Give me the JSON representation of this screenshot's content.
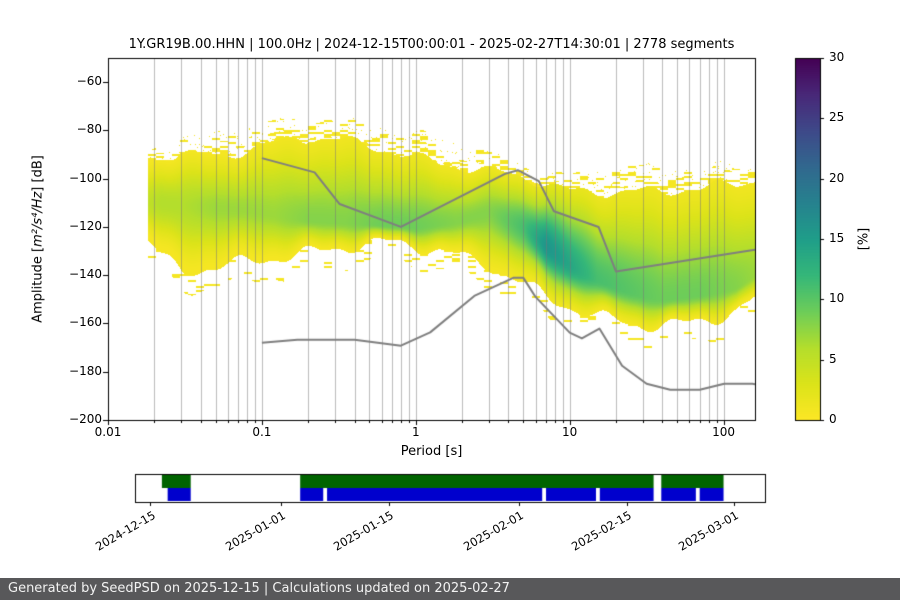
{
  "chart_data": {
    "type": "heatmap",
    "title": "1Y.GR19B.00.HHN | 100.0Hz | 2024-12-15T00:00:01 - 2025-02-27T14:30:01 | 2778 segments",
    "xlabel": "Period [s]",
    "ylabel": "Amplitude [m²/s⁴/Hz] [dB]",
    "ylabel_parts": {
      "prefix": "Amplitude [",
      "math": "m²/s⁴/Hz",
      "suffix": "] [dB]"
    },
    "xscale": "log",
    "xlim": [
      0.01,
      160
    ],
    "ylim": [
      -200,
      -50
    ],
    "grid": {
      "vertical_minor_log": true,
      "color": "rgba(120,120,120,0.5)"
    },
    "xticks": {
      "values": [
        0.01,
        0.1,
        1,
        10,
        100
      ],
      "labels": [
        "0.01",
        "0.1",
        "1",
        "10",
        "100"
      ]
    },
    "yticks": {
      "values": [
        -200,
        -180,
        -160,
        -140,
        -120,
        -100,
        -80,
        -60
      ],
      "labels": [
        "−200",
        "−180",
        "−160",
        "−140",
        "−120",
        "−100",
        "−80",
        "−60"
      ]
    },
    "colorbar": {
      "label": "[%]",
      "min": 0,
      "max": 30,
      "ticks": [
        0,
        5,
        10,
        15,
        20,
        25,
        30
      ],
      "colormap": "viridis_r",
      "stops": [
        [
          0.0,
          "#440154"
        ],
        [
          0.1,
          "#482878"
        ],
        [
          0.2,
          "#3e4989"
        ],
        [
          0.3,
          "#31688e"
        ],
        [
          0.4,
          "#26828e"
        ],
        [
          0.5,
          "#1f9e89"
        ],
        [
          0.6,
          "#35b779"
        ],
        [
          0.7,
          "#6dcd59"
        ],
        [
          0.8,
          "#b4de2c"
        ],
        [
          0.9,
          "#dce319"
        ],
        [
          1.0,
          "#fde725"
        ]
      ]
    },
    "density": {
      "description": "PPSD probability density columns: [period_s, wisp_top_dB, solid_top_dB, bottom_dB, mode_dB, peak_percent]",
      "columns": [
        [
          0.018,
          -88,
          -92,
          -126,
          -110,
          5
        ],
        [
          0.022,
          -85,
          -90,
          -133,
          -110,
          6
        ],
        [
          0.03,
          -82,
          -88,
          -140,
          -111,
          6
        ],
        [
          0.05,
          -80,
          -90,
          -138,
          -112,
          7
        ],
        [
          0.08,
          -78,
          -88,
          -134,
          -113,
          7
        ],
        [
          0.12,
          -77,
          -86,
          -131,
          -115,
          7
        ],
        [
          0.2,
          -76,
          -84,
          -129,
          -117,
          8
        ],
        [
          0.35,
          -76,
          -84,
          -128,
          -118,
          8
        ],
        [
          0.6,
          -77,
          -86,
          -128,
          -119,
          9
        ],
        [
          1.0,
          -80,
          -90,
          -129,
          -120,
          9
        ],
        [
          1.8,
          -85,
          -95,
          -131,
          -118,
          8
        ],
        [
          3.0,
          -90,
          -98,
          -134,
          -114,
          8
        ],
        [
          5.0,
          -95,
          -100,
          -142,
          -120,
          11
        ],
        [
          7.0,
          -97,
          -102,
          -149,
          -128,
          16
        ],
        [
          10.0,
          -98,
          -104,
          -154,
          -136,
          14
        ],
        [
          15.0,
          -95,
          -104,
          -159,
          -142,
          11
        ],
        [
          25.0,
          -94,
          -104,
          -161,
          -147,
          10
        ],
        [
          40.0,
          -96,
          -106,
          -160,
          -150,
          9
        ],
        [
          70.0,
          -96,
          -105,
          -157,
          -148,
          9
        ],
        [
          120.0,
          -94,
          -103,
          -154,
          -145,
          8
        ],
        [
          160.0,
          -92,
          -100,
          -150,
          -140,
          7
        ]
      ]
    },
    "noise_models": {
      "color": "#7f7f7f",
      "nhnm": [
        [
          0.1,
          -91.5
        ],
        [
          0.22,
          -97.4
        ],
        [
          0.32,
          -110.5
        ],
        [
          0.8,
          -120.0
        ],
        [
          3.8,
          -98.0
        ],
        [
          4.6,
          -96.5
        ],
        [
          6.3,
          -101.0
        ],
        [
          7.9,
          -113.5
        ],
        [
          15.4,
          -120.0
        ],
        [
          20.0,
          -138.5
        ],
        [
          160.0,
          -129.5
        ]
      ],
      "nlnm": [
        [
          0.1,
          -168.0
        ],
        [
          0.17,
          -166.7
        ],
        [
          0.4,
          -166.7
        ],
        [
          0.8,
          -169.2
        ],
        [
          1.24,
          -163.7
        ],
        [
          2.4,
          -148.6
        ],
        [
          4.3,
          -141.1
        ],
        [
          5.0,
          -141.1
        ],
        [
          6.0,
          -149.0
        ],
        [
          10.0,
          -163.8
        ],
        [
          12.0,
          -166.2
        ],
        [
          15.6,
          -162.1
        ],
        [
          21.9,
          -177.5
        ],
        [
          31.6,
          -185.0
        ],
        [
          45.0,
          -187.5
        ],
        [
          70.0,
          -187.5
        ],
        [
          101.0,
          -185.0
        ],
        [
          154.0,
          -185.0
        ],
        [
          160.0,
          -185.2
        ]
      ]
    }
  },
  "timeline": {
    "axis_start": "2024-12-13T00:00",
    "axis_end": "2025-03-05T00:00",
    "tick_dates": [
      "2024-12-15T00:00",
      "2025-01-01T00:00",
      "2025-01-15T00:00",
      "2025-02-01T00:00",
      "2025-02-15T00:00",
      "2025-03-01T00:00"
    ],
    "tick_labels": [
      "2024-12-15",
      "2025-01-01",
      "2025-01-15",
      "2025-02-01",
      "2025-02-15",
      "2025-03-01"
    ],
    "green_color": "#006400",
    "blue_color": "#0000cd",
    "green_segments": [
      [
        "2024-12-16T12:00",
        "2024-12-20T06:00"
      ],
      [
        "2025-01-03T12:00",
        "2025-02-18T12:00"
      ],
      [
        "2025-02-19T12:00",
        "2025-02-27T14:30"
      ]
    ],
    "blue_segments": [
      [
        "2024-12-17T06:00",
        "2024-12-20T06:00"
      ],
      [
        "2025-01-03T12:00",
        "2025-01-06T12:00"
      ],
      [
        "2025-01-07T00:00",
        "2025-02-04T00:00"
      ],
      [
        "2025-02-04T12:00",
        "2025-02-11T00:00"
      ],
      [
        "2025-02-11T12:00",
        "2025-02-18T12:00"
      ],
      [
        "2025-02-19T12:00",
        "2025-02-24T00:00"
      ],
      [
        "2025-02-24T12:00",
        "2025-02-27T14:30"
      ]
    ]
  },
  "footer": {
    "text": "Generated by SeedPSD on 2025-12-15 | Calculations updated on 2025-02-27",
    "bg": "#58585a",
    "fg": "#f2f2f2"
  }
}
